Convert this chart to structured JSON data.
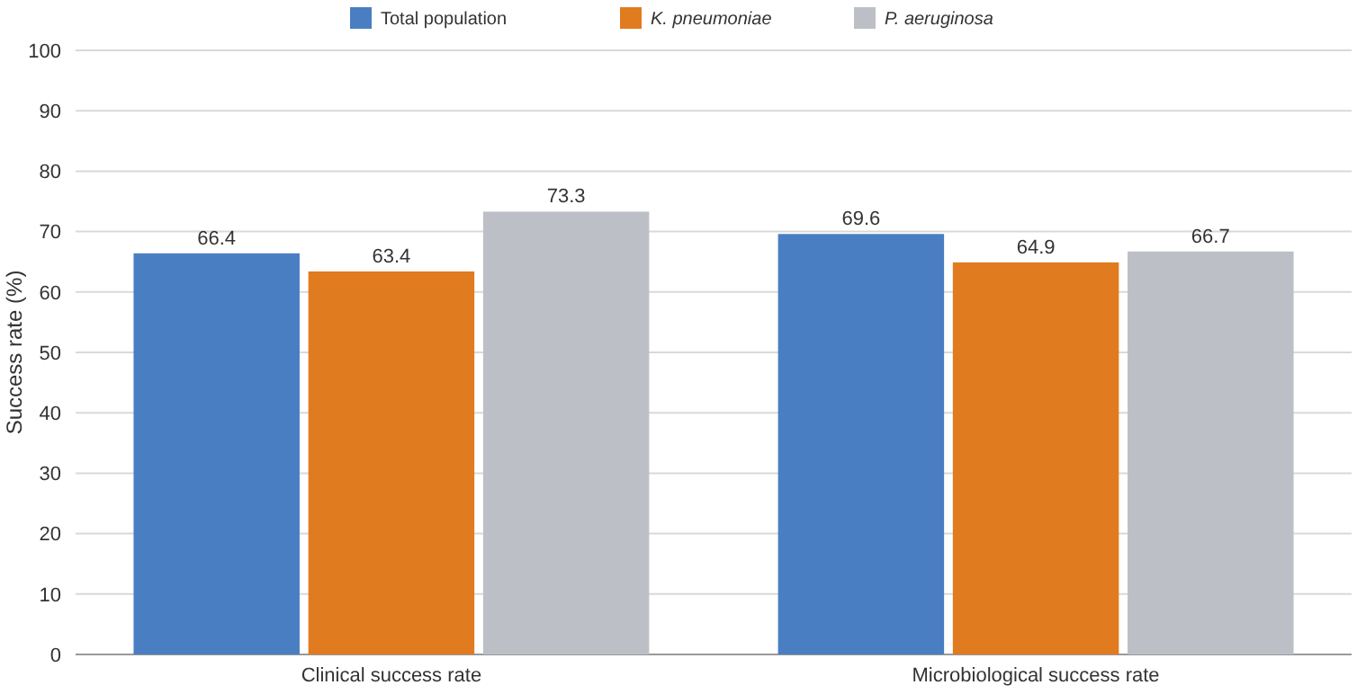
{
  "chart_data": {
    "type": "bar",
    "ylabel": "Success rate (%)",
    "categories": [
      "Clinical success rate",
      "Microbiological success rate"
    ],
    "series": [
      {
        "name": "Total population",
        "color": "#4a7ec2",
        "values": [
          66.4,
          69.6
        ]
      },
      {
        "name": "K. pneumoniae",
        "color": "#e07b20",
        "values": [
          63.4,
          64.9
        ]
      },
      {
        "name": "P. aeruginosa",
        "color": "#bcc0c6",
        "values": [
          73.3,
          66.7
        ]
      }
    ],
    "ylim": [
      0,
      100
    ],
    "yticks": [
      0,
      10,
      20,
      30,
      40,
      50,
      60,
      70,
      80,
      90,
      100
    ],
    "grid": "y",
    "legend": "top",
    "data_labels": true
  }
}
